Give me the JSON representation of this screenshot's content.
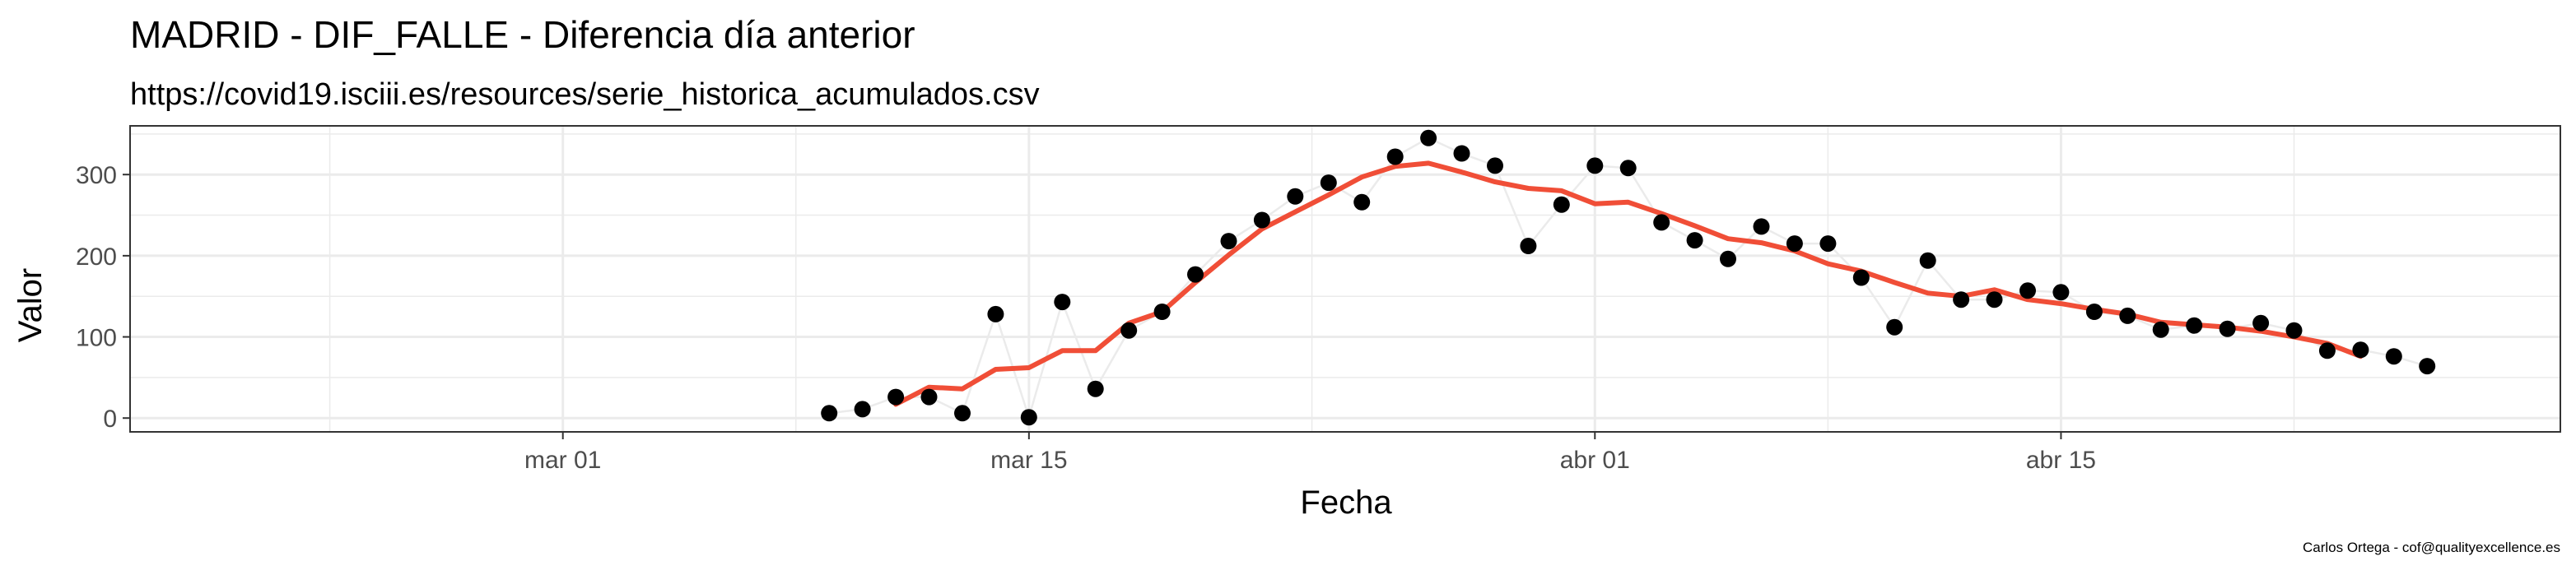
{
  "chart_data": {
    "type": "line",
    "title": "MADRID - DIF_FALLE - Diferencia día anterior",
    "subtitle": "https://covid19.isciii.es/resources/serie_historica_acumulados.csv",
    "xlabel": "Fecha",
    "ylabel": "Valor",
    "caption": "Carlos Ortega - cof@qualityexcellence.es",
    "x_ticks": [
      {
        "date": "2020-03-01",
        "label": "mar 01"
      },
      {
        "date": "2020-03-15",
        "label": "mar 15"
      },
      {
        "date": "2020-04-01",
        "label": "abr 01"
      },
      {
        "date": "2020-04-15",
        "label": "abr 15"
      }
    ],
    "y_ticks": [
      0,
      100,
      200,
      300
    ],
    "xlim": [
      "2020-02-17",
      "2020-04-30"
    ],
    "ylim": [
      -17,
      360
    ],
    "grid": true,
    "colors": {
      "points": "#000000",
      "connector": "#ebebeb",
      "smooth": "#f04e37",
      "grid": "#ebebeb",
      "panel_border": "#333333"
    },
    "series": [
      {
        "kind": "points",
        "x": [
          "2020-03-09",
          "2020-03-10",
          "2020-03-11",
          "2020-03-12",
          "2020-03-13",
          "2020-03-14",
          "2020-03-15",
          "2020-03-16",
          "2020-03-17",
          "2020-03-18",
          "2020-03-19",
          "2020-03-20",
          "2020-03-21",
          "2020-03-22",
          "2020-03-23",
          "2020-03-24",
          "2020-03-25",
          "2020-03-26",
          "2020-03-27",
          "2020-03-28",
          "2020-03-29",
          "2020-03-30",
          "2020-03-31",
          "2020-04-01",
          "2020-04-02",
          "2020-04-03",
          "2020-04-04",
          "2020-04-05",
          "2020-04-06",
          "2020-04-07",
          "2020-04-08",
          "2020-04-09",
          "2020-04-10",
          "2020-04-11",
          "2020-04-12",
          "2020-04-13",
          "2020-04-14",
          "2020-04-15",
          "2020-04-16",
          "2020-04-17",
          "2020-04-18",
          "2020-04-19",
          "2020-04-20",
          "2020-04-21",
          "2020-04-22",
          "2020-04-23",
          "2020-04-24",
          "2020-04-25",
          "2020-04-26"
        ],
        "y": [
          6,
          11,
          26,
          26,
          6,
          128,
          1,
          143,
          36,
          108,
          131,
          177,
          218,
          244,
          273,
          290,
          266,
          322,
          345,
          326,
          311,
          212,
          263,
          311,
          308,
          241,
          219,
          196,
          236,
          215,
          215,
          173,
          112,
          194,
          146,
          146,
          157,
          155,
          131,
          126,
          109,
          114,
          110,
          117,
          108,
          83,
          84,
          76,
          64
        ]
      },
      {
        "kind": "smooth",
        "x": [
          "2020-03-11",
          "2020-03-12",
          "2020-03-13",
          "2020-03-14",
          "2020-03-15",
          "2020-03-16",
          "2020-03-17",
          "2020-03-18",
          "2020-03-19",
          "2020-03-20",
          "2020-03-21",
          "2020-03-22",
          "2020-03-23",
          "2020-03-24",
          "2020-03-25",
          "2020-03-26",
          "2020-03-27",
          "2020-03-28",
          "2020-03-29",
          "2020-03-30",
          "2020-03-31",
          "2020-04-01",
          "2020-04-02",
          "2020-04-03",
          "2020-04-04",
          "2020-04-05",
          "2020-04-06",
          "2020-04-07",
          "2020-04-08",
          "2020-04-09",
          "2020-04-10",
          "2020-04-11",
          "2020-04-12",
          "2020-04-13",
          "2020-04-14",
          "2020-04-15",
          "2020-04-16",
          "2020-04-17",
          "2020-04-18",
          "2020-04-19",
          "2020-04-20",
          "2020-04-21",
          "2020-04-22",
          "2020-04-23",
          "2020-04-24"
        ],
        "y": [
          17,
          38,
          36,
          60,
          62,
          83,
          83,
          117,
          131,
          167,
          201,
          233,
          254,
          275,
          297,
          310,
          314,
          303,
          291,
          283,
          280,
          264,
          266,
          252,
          237,
          221,
          216,
          206,
          190,
          181,
          167,
          154,
          150,
          158,
          146,
          141,
          134,
          128,
          118,
          115,
          112,
          107,
          100,
          92,
          76
        ]
      }
    ]
  }
}
